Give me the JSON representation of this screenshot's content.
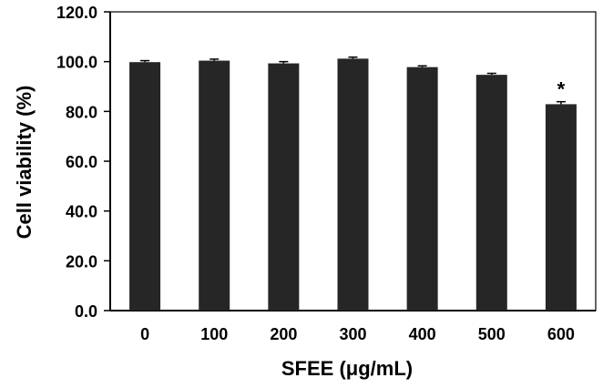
{
  "chart_data": {
    "type": "bar",
    "categories": [
      "0",
      "100",
      "200",
      "300",
      "400",
      "500",
      "600"
    ],
    "values": [
      99.8,
      100.4,
      99.3,
      101.2,
      97.8,
      94.7,
      82.9
    ],
    "errors": [
      0.6,
      0.6,
      0.7,
      0.6,
      0.5,
      0.6,
      1.0
    ],
    "annotations": [
      "",
      "",
      "",
      "",
      "",
      "",
      "*"
    ],
    "title": "",
    "xlabel": "SFEE (μg/mL)",
    "ylabel": "Cell viability (%)",
    "ylim": [
      0,
      120
    ],
    "yticks": [
      "0.0",
      "20.0",
      "40.0",
      "60.0",
      "80.0",
      "100.0",
      "120.0"
    ],
    "grid": false,
    "legend": "none",
    "colors": {
      "bar": "#262626",
      "axis": "#000000",
      "error_bar": "#000000"
    }
  }
}
